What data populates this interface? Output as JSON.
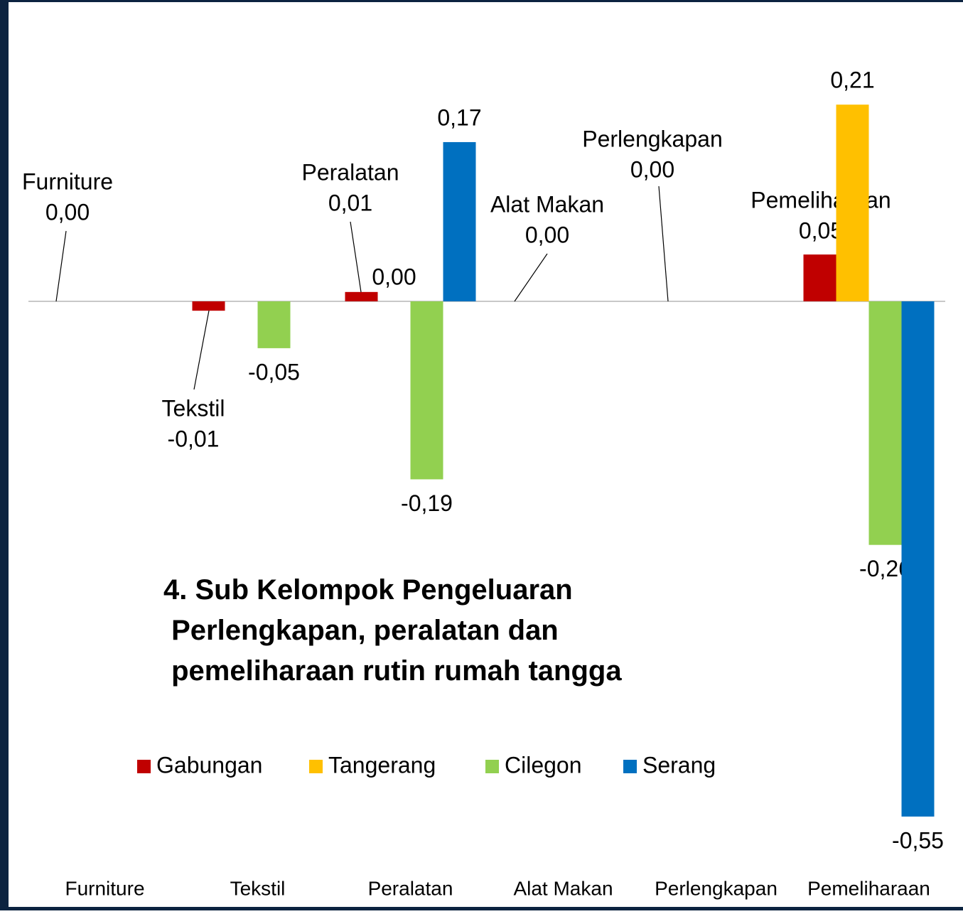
{
  "chart_data": {
    "type": "bar",
    "title": "4. Sub Kelompok Pengeluaran Perlengkapan, peralatan dan pemeliharaan rutin rumah tangga",
    "categories": [
      "Furniture",
      "Tekstil",
      "Peralatan",
      "Alat Makan",
      "Perlengkapan",
      "Pemeliharaan"
    ],
    "series": [
      {
        "name": "Gabungan",
        "color": "#c00000",
        "values": [
          0.0,
          -0.01,
          0.01,
          0.0,
          0.0,
          0.05
        ],
        "value_labels": [
          "0,00",
          "-0,01",
          "0,01",
          "0,00",
          "0,00",
          "0,05"
        ]
      },
      {
        "name": "Tangerang",
        "color": "#ffc000",
        "values": [
          null,
          null,
          0.0,
          null,
          null,
          0.21
        ],
        "value_labels": [
          null,
          null,
          "0,00",
          null,
          null,
          "0,21"
        ]
      },
      {
        "name": "Cilegon",
        "color": "#92d050",
        "values": [
          null,
          -0.05,
          -0.19,
          null,
          null,
          -0.26
        ],
        "value_labels": [
          null,
          "-0,05",
          "-0,19",
          null,
          null,
          "-0,26"
        ]
      },
      {
        "name": "Serang",
        "color": "#0070c0",
        "values": [
          null,
          null,
          0.17,
          null,
          null,
          -0.55
        ],
        "value_labels": [
          null,
          null,
          "0,17",
          null,
          null,
          "-0,55"
        ]
      }
    ],
    "ylim": [
      -0.6,
      0.3
    ],
    "legend": "bottom"
  }
}
